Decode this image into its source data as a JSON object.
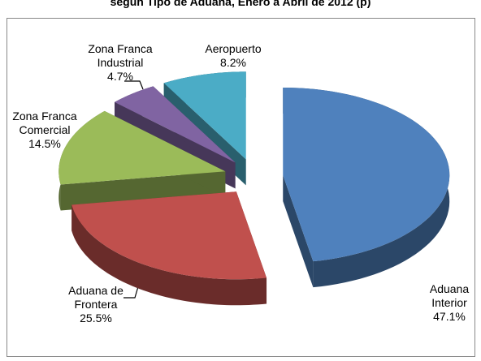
{
  "chart_data": {
    "type": "pie",
    "title": "según Tipo de Aduana, Enero a Abril de 2012 (p)",
    "categories": [
      "Aduana Interior",
      "Aduana de Frontera",
      "Zona Franca Comercial",
      "Zona Franca Industrial",
      "Aeropuerto"
    ],
    "values": [
      47.1,
      25.5,
      14.5,
      4.7,
      8.2
    ],
    "value_labels": [
      "47.1%",
      "25.5%",
      "14.5%",
      "4.7%",
      "8.2%"
    ],
    "colors": [
      "#4f81bd",
      "#c0504d",
      "#9bbb59",
      "#8064a2",
      "#4bacc6"
    ]
  }
}
